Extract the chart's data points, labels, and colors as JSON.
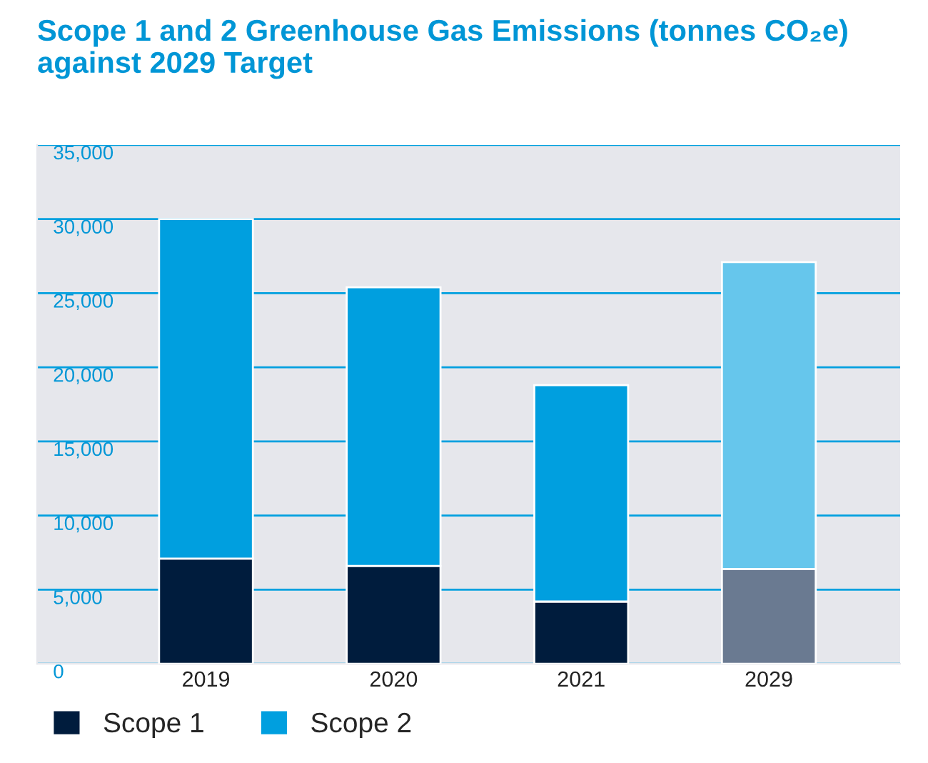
{
  "chart_data": {
    "type": "bar",
    "stacked": true,
    "title": "Scope 1 and 2 Greenhouse Gas Emissions (tonnes CO₂e)\nagainst 2029 Target",
    "categories": [
      "2019",
      "2020",
      "2021",
      "2029"
    ],
    "series": [
      {
        "name": "Scope 1",
        "color": "#001c3d",
        "colors": [
          "#001c3d",
          "#001c3d",
          "#001c3d",
          "#6a7a91"
        ],
        "values": [
          7100,
          6600,
          4200,
          6400
        ]
      },
      {
        "name": "Scope 2",
        "color": "#009fdf",
        "colors": [
          "#009fdf",
          "#009fdf",
          "#009fdf",
          "#66c6ec"
        ],
        "values": [
          22900,
          18800,
          14600,
          20700
        ]
      }
    ],
    "ylim": [
      0,
      35000
    ],
    "yticks": [
      {
        "value": 0,
        "label": "0"
      },
      {
        "value": 5000,
        "label": "5,000"
      },
      {
        "value": 10000,
        "label": "10,000"
      },
      {
        "value": 15000,
        "label": "15,000"
      },
      {
        "value": 20000,
        "label": "20,000"
      },
      {
        "value": 25000,
        "label": "25,000"
      },
      {
        "value": 30000,
        "label": "30,000"
      },
      {
        "value": 35000,
        "label": "35,000"
      }
    ],
    "grid": "y",
    "legend": "bottom left"
  }
}
